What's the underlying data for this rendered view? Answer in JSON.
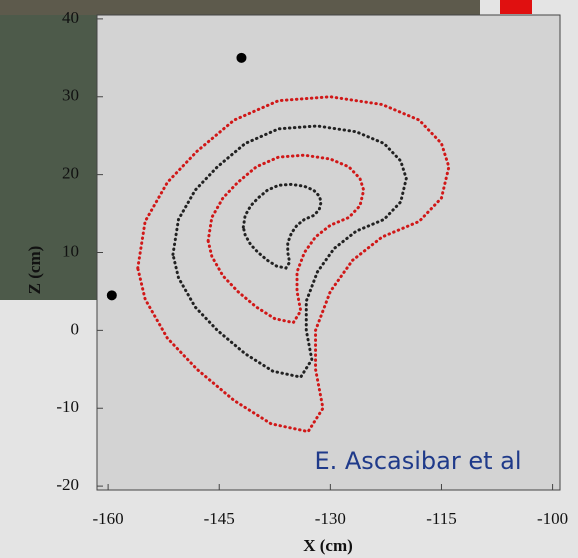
{
  "chart_data": {
    "type": "line",
    "xlabel": "X (cm)",
    "ylabel": "Z (cm)",
    "annotation": "E. Ascasibar et al",
    "xlim": [
      -161.5,
      -99
    ],
    "xticks": [
      -160,
      -145,
      -130,
      -115,
      -100
    ],
    "ylim": [
      -20.5,
      40.5
    ],
    "yticks": [
      -20,
      -10,
      0,
      10,
      20,
      30,
      40
    ],
    "series": [
      {
        "color": "#d01818",
        "x": [
          -156,
          -155,
          -152,
          -148,
          -143,
          -137,
          -130,
          -123,
          -118,
          -115,
          -114,
          -115,
          -118,
          -123,
          -127,
          -130,
          -132,
          -132,
          -131,
          -133,
          -138,
          -143,
          -148,
          -152,
          -155,
          -156
        ],
        "y": [
          8,
          14,
          19,
          23,
          27,
          29.5,
          30,
          29,
          27,
          24,
          21,
          17,
          14,
          12,
          9,
          5,
          0,
          -5,
          -10,
          -13,
          -12,
          -9,
          -5,
          -1,
          4,
          8
        ]
      },
      {
        "color": "#222222",
        "x": [
          -151.25,
          -150.5,
          -148.25,
          -145.25,
          -141.5,
          -137,
          -131.75,
          -126.5,
          -122.75,
          -120.5,
          -119.75,
          -120.5,
          -122.75,
          -126.5,
          -129.5,
          -131.75,
          -133.25,
          -133.25,
          -132.5,
          -134,
          -137.75,
          -141.5,
          -145.25,
          -148.25,
          -150.5,
          -151.25
        ],
        "y": [
          9.75,
          14.25,
          18,
          21,
          24,
          25.88,
          26.25,
          25.5,
          24,
          21.75,
          19.5,
          16.5,
          14.25,
          12.75,
          10.5,
          7.5,
          3.75,
          0,
          -3.75,
          -6,
          -5.25,
          -3,
          0,
          3,
          6.75,
          9.75
        ]
      },
      {
        "color": "#d01818",
        "x": [
          -146.5,
          -146,
          -144.5,
          -142.5,
          -140,
          -137,
          -133.5,
          -130,
          -127.5,
          -126,
          -125.5,
          -126,
          -127.5,
          -130,
          -132,
          -133.5,
          -134.5,
          -134.5,
          -134,
          -135,
          -137.5,
          -140,
          -142.5,
          -144.5,
          -146,
          -146.5
        ],
        "y": [
          11.5,
          14.5,
          17,
          19,
          21,
          22.25,
          22.5,
          22,
          21,
          19.5,
          18,
          16,
          14.5,
          13.5,
          12,
          10,
          7.5,
          5,
          2.5,
          1,
          1.5,
          3,
          5,
          7,
          9.5,
          11.5
        ]
      },
      {
        "color": "#222222",
        "x": [
          -141.75,
          -141.5,
          -140.75,
          -139.75,
          -138.5,
          -137,
          -135.25,
          -133.5,
          -132.25,
          -131.5,
          -131.25,
          -131.5,
          -132.25,
          -133.5,
          -134.5,
          -135.25,
          -135.75,
          -135.75,
          -135.5,
          -136,
          -137.25,
          -138.5,
          -139.75,
          -140.75,
          -141.5,
          -141.75
        ],
        "y": [
          13.25,
          14.75,
          16,
          17,
          18,
          18.63,
          18.75,
          18.5,
          18,
          17.25,
          16.5,
          15.5,
          14.75,
          14.25,
          13.5,
          12.5,
          11.25,
          10,
          8.75,
          8,
          8.25,
          9,
          10,
          11,
          12.25,
          13.25
        ]
      }
    ],
    "markers": {
      "color": "#000000",
      "x": [
        -142,
        -159.5
      ],
      "y": [
        35,
        4.5
      ]
    }
  }
}
